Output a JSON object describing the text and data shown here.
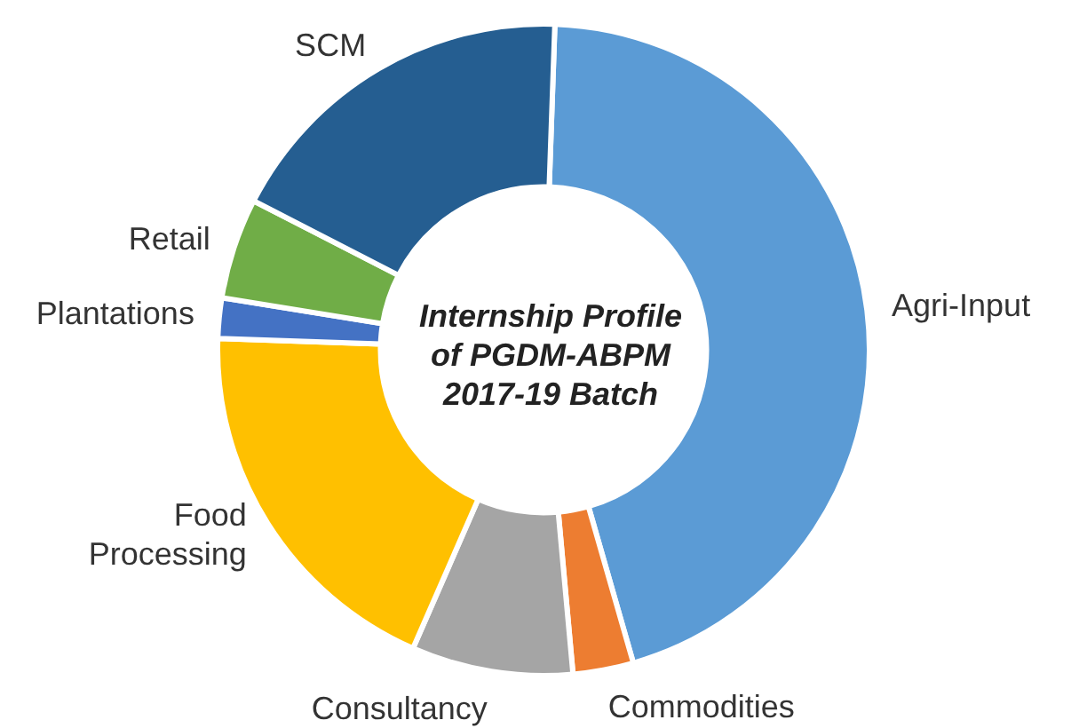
{
  "chart_data": {
    "type": "donut",
    "title": "Internship Profile of PGDM-ABPM 2017-19 Batch",
    "categories": [
      "Agri-Input",
      "Commodities",
      "Consultancy",
      "Food Processing",
      "Plantations",
      "Retail",
      "SCM"
    ],
    "values": [
      45,
      3,
      8,
      19,
      2,
      5,
      18
    ],
    "colors": [
      "#5b9bd5",
      "#ed7d31",
      "#a5a5a5",
      "#ffc000",
      "#4472c4",
      "#70ad47",
      "#255e91"
    ],
    "legend": false
  }
}
